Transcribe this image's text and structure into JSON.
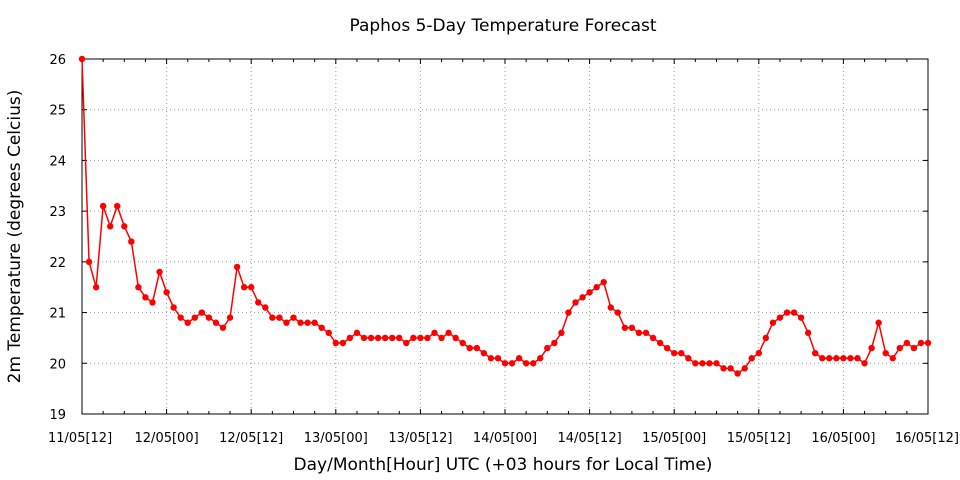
{
  "chart_data": {
    "type": "line",
    "title": "Paphos 5-Day Temperature Forecast",
    "xlabel": "Day/Month[Hour] UTC (+03 hours for Local Time)",
    "ylabel": "2m Temperature (degrees Celcius)",
    "ylim": [
      19,
      26
    ],
    "yticks": [
      19,
      20,
      21,
      22,
      23,
      24,
      25,
      26
    ],
    "xlim": [
      0,
      120
    ],
    "xtick_step_hours": 12,
    "xtick_labels": [
      "11/05[12]",
      "12/05[00]",
      "12/05[12]",
      "13/05[00]",
      "13/05[12]",
      "14/05[00]",
      "14/05[12]",
      "15/05[00]",
      "15/05[12]",
      "16/05[00]",
      "16/05[12]"
    ],
    "x_interval_hours": 1,
    "grid": true,
    "color": "#ff0000",
    "series": [
      {
        "values": [
          26.0,
          22.0,
          21.5,
          23.1,
          22.7,
          23.1,
          22.7,
          22.4,
          21.5,
          21.3,
          21.2,
          21.8,
          21.4,
          21.1,
          20.9,
          20.8,
          20.9,
          21.0,
          20.9,
          20.8,
          20.7,
          20.9,
          21.9,
          21.5,
          21.5,
          21.2,
          21.1,
          20.9,
          20.9,
          20.8,
          20.9,
          20.8,
          20.8,
          20.8,
          20.7,
          20.6,
          20.4,
          20.4,
          20.5,
          20.6,
          20.5,
          20.5,
          20.5,
          20.5,
          20.5,
          20.5,
          20.4,
          20.5,
          20.5,
          20.5,
          20.6,
          20.5,
          20.6,
          20.5,
          20.4,
          20.3,
          20.3,
          20.2,
          20.1,
          20.1,
          20.0,
          20.0,
          20.1,
          20.0,
          20.0,
          20.1,
          20.3,
          20.4,
          20.6,
          21.0,
          21.2,
          21.3,
          21.4,
          21.5,
          21.6,
          21.1,
          21.0,
          20.7,
          20.7,
          20.6,
          20.6,
          20.5,
          20.4,
          20.3,
          20.2,
          20.2,
          20.1,
          20.0,
          20.0,
          20.0,
          20.0,
          19.9,
          19.9,
          19.8,
          19.9,
          20.1,
          20.2,
          20.5,
          20.8,
          20.9,
          21.0,
          21.0,
          20.9,
          20.6,
          20.2,
          20.1,
          20.1,
          20.1,
          20.1,
          20.1,
          20.1,
          20.0,
          20.3,
          20.8,
          20.2,
          20.1,
          20.3,
          20.4,
          20.3,
          20.4,
          20.4
        ]
      }
    ]
  }
}
